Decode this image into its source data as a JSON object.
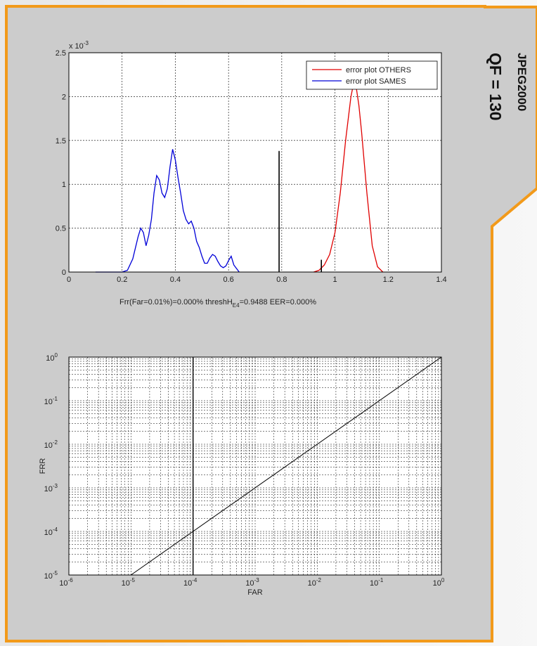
{
  "side_labels": {
    "codec": "JPEG2000",
    "quality": "QF = 130"
  },
  "colors": {
    "frame": "#f29a1a",
    "panel": "#cccccc",
    "others": "#e00000",
    "sames": "#0000d8",
    "axis": "#000000",
    "grid": "#000000"
  },
  "chart_data": [
    {
      "type": "line",
      "title": "",
      "x_tick_labels": [
        "0",
        "0.2",
        "0.4",
        "0.6",
        "0.8",
        "1",
        "1.2",
        "1.4"
      ],
      "y_tick_labels": [
        "0",
        "0.5",
        "1",
        "1.5",
        "2",
        "2.5"
      ],
      "y_exponent_base": "x 10",
      "y_exponent_power": "-3",
      "xlim": [
        0,
        1.4
      ],
      "ylim": [
        0,
        0.0025
      ],
      "grid": true,
      "legend": "top-right",
      "xlabel": {
        "pre": "Frr(Far=0.01%)=0.000% threshH",
        "sub": "E4",
        "post": "=0.9488  EER=0.000%"
      },
      "series": [
        {
          "name": "error plot OTHERS",
          "color": "#e00000",
          "x": [
            0.92,
            0.94,
            0.96,
            0.98,
            1.0,
            1.02,
            1.04,
            1.06,
            1.07,
            1.08,
            1.09,
            1.1,
            1.12,
            1.14,
            1.16,
            1.18
          ],
          "y": [
            0,
            2e-05,
            8e-05,
            0.0002,
            0.00045,
            0.0009,
            0.0015,
            0.002,
            0.00215,
            0.0021,
            0.0019,
            0.0016,
            0.0009,
            0.0003,
            6e-05,
            0
          ]
        },
        {
          "name": "error plot SAMES",
          "color": "#0000d8",
          "x": [
            0.1,
            0.2,
            0.22,
            0.24,
            0.26,
            0.27,
            0.28,
            0.29,
            0.3,
            0.31,
            0.32,
            0.33,
            0.34,
            0.35,
            0.36,
            0.37,
            0.38,
            0.39,
            0.4,
            0.41,
            0.42,
            0.43,
            0.44,
            0.45,
            0.46,
            0.47,
            0.48,
            0.49,
            0.5,
            0.51,
            0.52,
            0.53,
            0.54,
            0.55,
            0.56,
            0.57,
            0.58,
            0.59,
            0.6,
            0.61,
            0.62,
            0.64
          ],
          "y": [
            0,
            0,
            2e-05,
            0.00015,
            0.0004,
            0.0005,
            0.00045,
            0.0003,
            0.00042,
            0.0006,
            0.0009,
            0.0011,
            0.00105,
            0.0009,
            0.00085,
            0.00095,
            0.0012,
            0.0014,
            0.00128,
            0.00108,
            0.0009,
            0.0007,
            0.0006,
            0.00055,
            0.00058,
            0.0005,
            0.00035,
            0.00028,
            0.00018,
            0.0001,
            0.0001,
            0.00016,
            0.0002,
            0.00018,
            0.00012,
            7e-05,
            5e-05,
            7e-05,
            0.00013,
            0.00018,
            8e-05,
            0
          ]
        }
      ],
      "vertical_lines": [
        {
          "x": 0.79,
          "y_top": 0.00138
        },
        {
          "x": 0.9488,
          "y_top": 0.00014
        }
      ]
    },
    {
      "type": "line",
      "title": "",
      "xlabel": "FAR",
      "ylabel": "FRR",
      "x_scale": "log",
      "y_scale": "log",
      "xlim": [
        1e-06,
        1
      ],
      "ylim": [
        1e-05,
        1
      ],
      "x_tick_exponents": [
        "-6",
        "-5",
        "-4",
        "-3",
        "-2",
        "-1",
        "0"
      ],
      "y_tick_exponents": [
        "-5",
        "-4",
        "-3",
        "-2",
        "-1",
        "0"
      ],
      "tick_base": "10",
      "grid": true,
      "series": [
        {
          "color": "#000000",
          "x": [
            1e-05,
            1
          ],
          "y": [
            1e-05,
            1
          ]
        }
      ],
      "vertical_lines": [
        {
          "x": 0.0001
        }
      ]
    }
  ]
}
